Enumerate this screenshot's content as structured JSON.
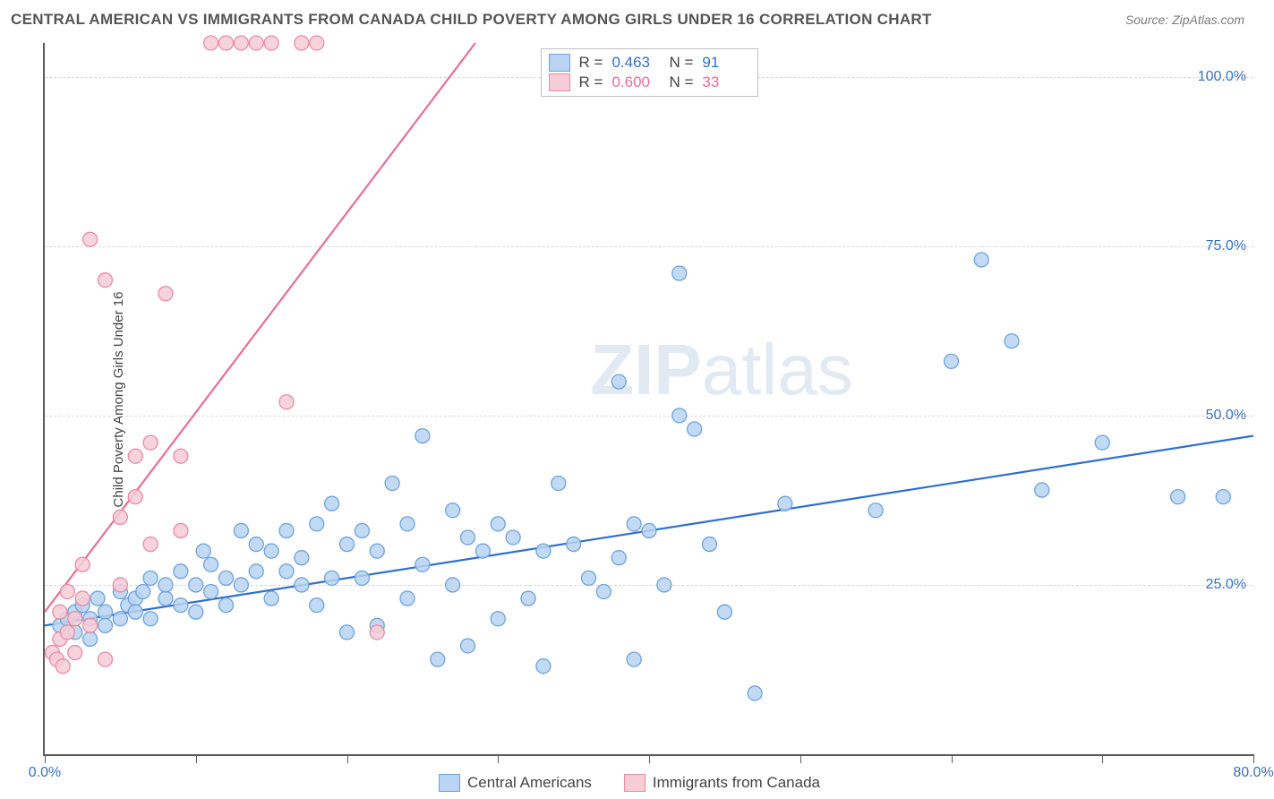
{
  "title": "CENTRAL AMERICAN VS IMMIGRANTS FROM CANADA CHILD POVERTY AMONG GIRLS UNDER 16 CORRELATION CHART",
  "source": "Source: ZipAtlas.com",
  "y_axis_label": "Child Poverty Among Girls Under 16",
  "watermark_a": "ZIP",
  "watermark_b": "atlas",
  "chart": {
    "type": "scatter",
    "background_color": "#ffffff",
    "grid_color": "#d8d8d8",
    "axis_color": "#5b5b5b",
    "xlim": [
      0,
      80
    ],
    "ylim": [
      0,
      105
    ],
    "x_ticks": [
      0,
      10,
      20,
      30,
      40,
      50,
      60,
      70,
      80
    ],
    "x_tick_labels": {
      "0": "0.0%",
      "80": "80.0%"
    },
    "y_ticks": [
      25,
      50,
      75,
      100
    ],
    "y_tick_labels": {
      "25": "25.0%",
      "50": "50.0%",
      "75": "75.0%",
      "100": "100.0%"
    },
    "marker_radius": 8,
    "marker_stroke_width": 1.3,
    "trend_line_width": 2.2,
    "series": [
      {
        "name": "Central Americans",
        "fill": "#b9d4f2",
        "stroke": "#6ea2db",
        "line_color": "#2f6fd0",
        "r_value": "0.463",
        "n_value": "91",
        "trend": {
          "x1": 0,
          "y1": 19,
          "x2": 80,
          "y2": 47
        },
        "points": [
          [
            1,
            19
          ],
          [
            1.5,
            20
          ],
          [
            2,
            18
          ],
          [
            2,
            21
          ],
          [
            2.5,
            22
          ],
          [
            3,
            20
          ],
          [
            3,
            17
          ],
          [
            3.5,
            23
          ],
          [
            4,
            21
          ],
          [
            4,
            19
          ],
          [
            5,
            24
          ],
          [
            5,
            20
          ],
          [
            5.5,
            22
          ],
          [
            6,
            23
          ],
          [
            6,
            21
          ],
          [
            6.5,
            24
          ],
          [
            7,
            20
          ],
          [
            7,
            26
          ],
          [
            8,
            23
          ],
          [
            8,
            25
          ],
          [
            9,
            22
          ],
          [
            9,
            27
          ],
          [
            10,
            25
          ],
          [
            10,
            21
          ],
          [
            10.5,
            30
          ],
          [
            11,
            24
          ],
          [
            11,
            28
          ],
          [
            12,
            26
          ],
          [
            12,
            22
          ],
          [
            13,
            33
          ],
          [
            13,
            25
          ],
          [
            14,
            31
          ],
          [
            14,
            27
          ],
          [
            15,
            30
          ],
          [
            15,
            23
          ],
          [
            16,
            33
          ],
          [
            16,
            27
          ],
          [
            17,
            29
          ],
          [
            17,
            25
          ],
          [
            18,
            34
          ],
          [
            18,
            22
          ],
          [
            19,
            37
          ],
          [
            19,
            26
          ],
          [
            20,
            31
          ],
          [
            20,
            18
          ],
          [
            21,
            33
          ],
          [
            21,
            26
          ],
          [
            22,
            30
          ],
          [
            22,
            19
          ],
          [
            23,
            40
          ],
          [
            24,
            34
          ],
          [
            24,
            23
          ],
          [
            25,
            47
          ],
          [
            25,
            28
          ],
          [
            26,
            14
          ],
          [
            27,
            36
          ],
          [
            27,
            25
          ],
          [
            28,
            32
          ],
          [
            28,
            16
          ],
          [
            29,
            30
          ],
          [
            30,
            34
          ],
          [
            30,
            20
          ],
          [
            31,
            32
          ],
          [
            32,
            23
          ],
          [
            33,
            30
          ],
          [
            33,
            13
          ],
          [
            34,
            40
          ],
          [
            35,
            31
          ],
          [
            36,
            26
          ],
          [
            37,
            24
          ],
          [
            38,
            55
          ],
          [
            38,
            29
          ],
          [
            39,
            34
          ],
          [
            39,
            14
          ],
          [
            40,
            33
          ],
          [
            41,
            25
          ],
          [
            42,
            71
          ],
          [
            42,
            50
          ],
          [
            43,
            48
          ],
          [
            44,
            31
          ],
          [
            45,
            21
          ],
          [
            47,
            9
          ],
          [
            49,
            37
          ],
          [
            55,
            36
          ],
          [
            60,
            58
          ],
          [
            62,
            73
          ],
          [
            64,
            61
          ],
          [
            66,
            39
          ],
          [
            70,
            46
          ],
          [
            75,
            38
          ],
          [
            78,
            38
          ]
        ]
      },
      {
        "name": "Immigrants from Canada",
        "fill": "#f6cdd6",
        "stroke": "#e98ba2",
        "line_color": "#e76f91",
        "r_value": "0.600",
        "n_value": "33",
        "trend": {
          "x1": 0,
          "y1": 21,
          "x2": 28.5,
          "y2": 105
        },
        "points": [
          [
            0.5,
            15
          ],
          [
            0.8,
            14
          ],
          [
            1,
            17
          ],
          [
            1,
            21
          ],
          [
            1.2,
            13
          ],
          [
            1.5,
            18
          ],
          [
            1.5,
            24
          ],
          [
            2,
            15
          ],
          [
            2,
            20
          ],
          [
            2.5,
            23
          ],
          [
            2.5,
            28
          ],
          [
            3,
            19
          ],
          [
            3,
            76
          ],
          [
            4,
            70
          ],
          [
            4,
            14
          ],
          [
            5,
            25
          ],
          [
            5,
            35
          ],
          [
            6,
            38
          ],
          [
            6,
            44
          ],
          [
            7,
            46
          ],
          [
            7,
            31
          ],
          [
            8,
            68
          ],
          [
            9,
            33
          ],
          [
            9,
            44
          ],
          [
            11,
            105
          ],
          [
            12,
            105
          ],
          [
            13,
            105
          ],
          [
            14,
            105
          ],
          [
            15,
            105
          ],
          [
            16,
            52
          ],
          [
            17,
            105
          ],
          [
            18,
            105
          ],
          [
            22,
            18
          ]
        ]
      }
    ],
    "stats_labels": {
      "r": "R  =",
      "n": "N  ="
    }
  },
  "legend": {
    "series_a": "Central Americans",
    "series_b": "Immigrants from Canada"
  }
}
